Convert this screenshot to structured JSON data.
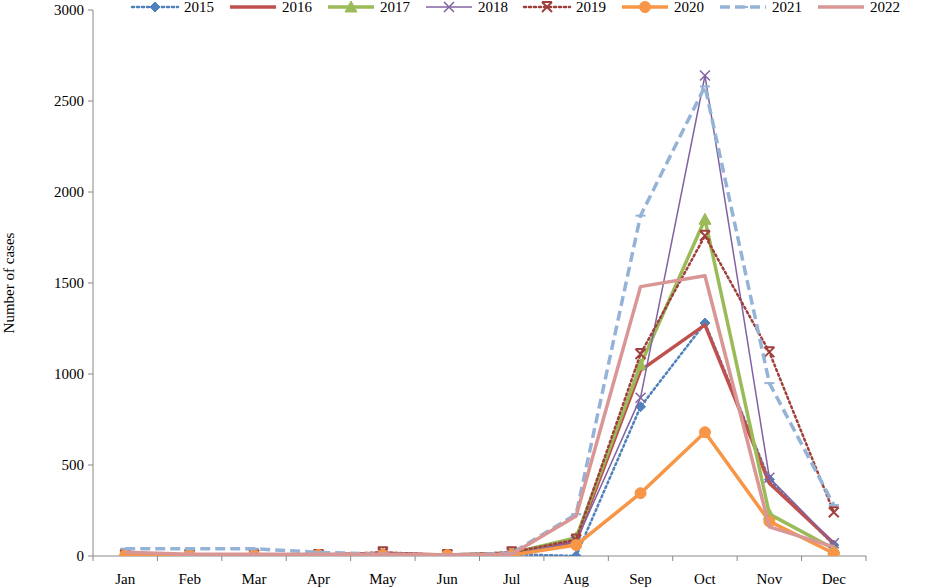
{
  "chart_data": {
    "type": "line",
    "y_label": "Number of cases",
    "categories": [
      "Jan",
      "Feb",
      "Mar",
      "Apr",
      "May",
      "Jun",
      "Jul",
      "Aug",
      "Sep",
      "Oct",
      "Nov",
      "Dec"
    ],
    "ylim": [
      0,
      3000
    ],
    "yticks": [
      0,
      500,
      1000,
      1500,
      2000,
      2500,
      3000
    ],
    "grid": false,
    "legend": "top",
    "series": [
      {
        "name": "2015",
        "color": "#4f81bd",
        "marker": "diamond",
        "line_style": "dotted",
        "values": [
          5,
          5,
          5,
          5,
          10,
          5,
          10,
          0,
          820,
          1280,
          420,
          60
        ]
      },
      {
        "name": "2016",
        "color": "#c0504d",
        "marker": "none",
        "line_style": "solid",
        "values": [
          5,
          5,
          5,
          5,
          15,
          5,
          15,
          80,
          1020,
          1270,
          400,
          70
        ]
      },
      {
        "name": "2017",
        "color": "#9bbb59",
        "marker": "triangle",
        "line_style": "solid",
        "values": [
          5,
          5,
          5,
          5,
          10,
          5,
          15,
          100,
          1050,
          1850,
          230,
          40
        ]
      },
      {
        "name": "2018",
        "color": "#8064a2",
        "marker": "x",
        "line_style": "solid",
        "values": [
          5,
          5,
          5,
          5,
          10,
          5,
          10,
          80,
          870,
          2640,
          430,
          70
        ]
      },
      {
        "name": "2019",
        "color": "#a0403c",
        "marker": "star",
        "line_style": "dotted",
        "values": [
          5,
          5,
          5,
          5,
          20,
          5,
          20,
          90,
          1110,
          1760,
          1120,
          240
        ]
      },
      {
        "name": "2020",
        "color": "#f79646",
        "marker": "circle",
        "line_style": "solid",
        "values": [
          5,
          5,
          5,
          5,
          5,
          5,
          5,
          60,
          345,
          680,
          190,
          15
        ]
      },
      {
        "name": "2021",
        "color": "#95b3d7",
        "marker": "dash",
        "line_style": "dashed",
        "values": [
          40,
          40,
          40,
          20,
          10,
          5,
          15,
          230,
          1870,
          2580,
          950,
          280
        ]
      },
      {
        "name": "2022",
        "color": "#d99694",
        "marker": "none",
        "line_style": "solid",
        "values": [
          20,
          10,
          10,
          10,
          10,
          5,
          10,
          220,
          1480,
          1540,
          160,
          50
        ]
      }
    ]
  }
}
